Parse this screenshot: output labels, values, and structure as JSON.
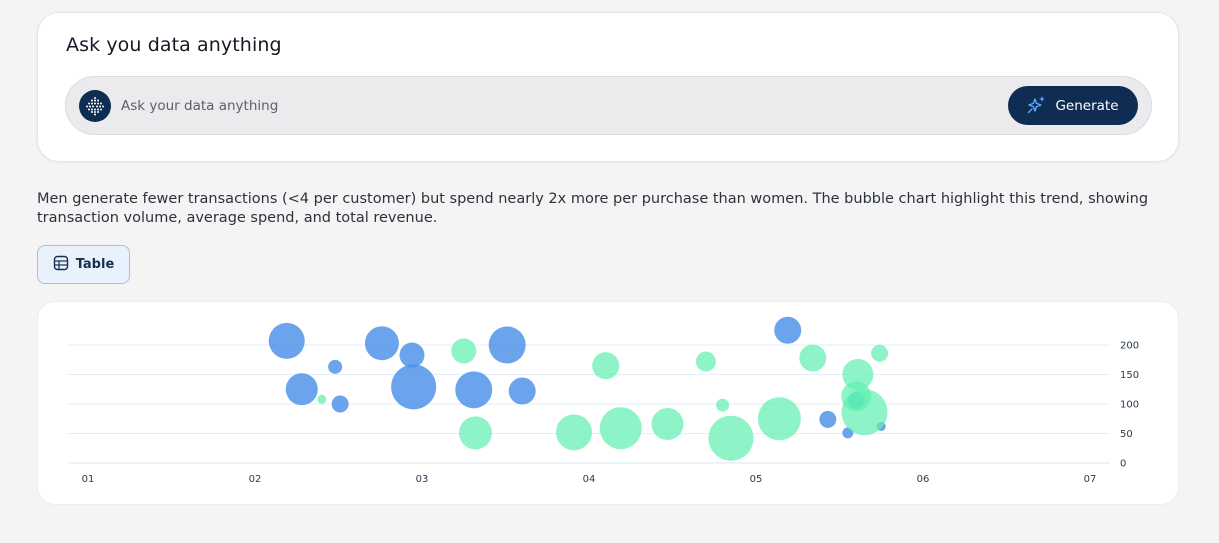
{
  "ask": {
    "title": "Ask you data anything",
    "placeholder": "Ask your data anything",
    "generate_label": "Generate"
  },
  "summary": "Men generate fewer transactions (<4 per customer) but spend nearly 2x more per purchase than women. The bubble chart highlight this trend, showing transaction volume, average spend, and total revenue.",
  "table_button_label": "Table",
  "colors": {
    "brand_navy": "#0f2d52",
    "series_men": "#4a90e8",
    "series_women": "#5ef0b0"
  },
  "chart_data": {
    "type": "scatter",
    "title": "",
    "xlabel": "",
    "ylabel": "",
    "x_ticks": [
      "01",
      "02",
      "03",
      "04",
      "05",
      "06",
      "07"
    ],
    "y_ticks": [
      "0",
      "50",
      "100",
      "150",
      "200"
    ],
    "xlim": [
      1,
      7
    ],
    "ylim": [
      0,
      200
    ],
    "y_axis_side": "right",
    "grid": true,
    "legend": "none",
    "series": [
      {
        "color": "#4a90e8",
        "points": [
          {
            "x": 2.19,
            "y": 207,
            "size": 36
          },
          {
            "x": 2.28,
            "y": 125,
            "size": 32
          },
          {
            "x": 2.48,
            "y": 163,
            "size": 14
          },
          {
            "x": 2.51,
            "y": 100,
            "size": 17
          },
          {
            "x": 2.76,
            "y": 203,
            "size": 34
          },
          {
            "x": 2.94,
            "y": 183,
            "size": 25
          },
          {
            "x": 2.95,
            "y": 129,
            "size": 45
          },
          {
            "x": 3.31,
            "y": 124,
            "size": 37
          },
          {
            "x": 3.51,
            "y": 200,
            "size": 37
          },
          {
            "x": 3.6,
            "y": 122,
            "size": 27
          },
          {
            "x": 5.19,
            "y": 225,
            "size": 27
          },
          {
            "x": 5.43,
            "y": 74,
            "size": 17
          },
          {
            "x": 5.55,
            "y": 51,
            "size": 11
          },
          {
            "x": 5.6,
            "y": 106,
            "size": 17
          },
          {
            "x": 5.75,
            "y": 62,
            "size": 9
          }
        ]
      },
      {
        "color": "#5ef0b0",
        "points": [
          {
            "x": 2.4,
            "y": 108,
            "size": 9
          },
          {
            "x": 3.25,
            "y": 190,
            "size": 25
          },
          {
            "x": 3.32,
            "y": 51,
            "size": 33
          },
          {
            "x": 3.91,
            "y": 52,
            "size": 36
          },
          {
            "x": 4.1,
            "y": 165,
            "size": 27
          },
          {
            "x": 4.19,
            "y": 59,
            "size": 42
          },
          {
            "x": 4.47,
            "y": 66,
            "size": 32
          },
          {
            "x": 4.7,
            "y": 172,
            "size": 20
          },
          {
            "x": 4.8,
            "y": 98,
            "size": 13
          },
          {
            "x": 4.85,
            "y": 42,
            "size": 45
          },
          {
            "x": 5.14,
            "y": 75,
            "size": 43
          },
          {
            "x": 5.34,
            "y": 178,
            "size": 27
          },
          {
            "x": 5.61,
            "y": 150,
            "size": 31
          },
          {
            "x": 5.6,
            "y": 113,
            "size": 30
          },
          {
            "x": 5.65,
            "y": 86,
            "size": 46
          },
          {
            "x": 5.74,
            "y": 186,
            "size": 17
          }
        ]
      }
    ]
  }
}
